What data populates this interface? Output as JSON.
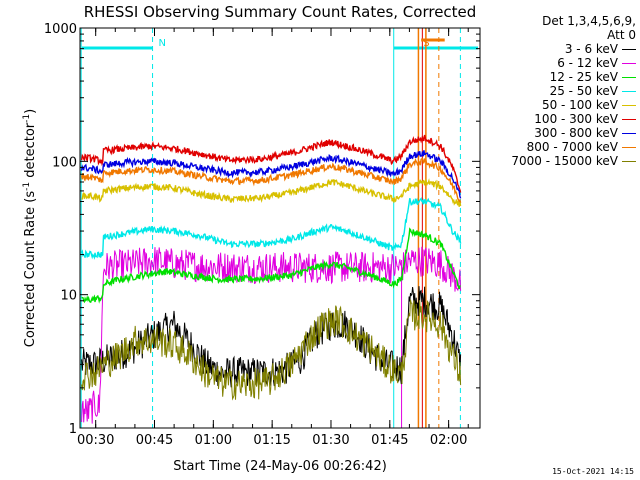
{
  "chart_data": {
    "type": "line",
    "title": "RHESSI Observing Summary Count Rates, Corrected",
    "xlabel": "Start Time (24-May-06 00:26:42)",
    "ylabel_parts": {
      "before": "Corrected Count Rate (s",
      "exp1": "-1",
      "mid": " detector",
      "exp2": "-1",
      "after": ")"
    },
    "yscale": "log",
    "ylim": [
      1,
      1000
    ],
    "y_ticks": [
      "1",
      "10",
      "100",
      "1000"
    ],
    "xlim_minutes": [
      26,
      128
    ],
    "x_ticks": [
      {
        "label": "00:30",
        "minute": 30
      },
      {
        "label": "00:45",
        "minute": 45
      },
      {
        "label": "01:00",
        "minute": 60
      },
      {
        "label": "01:15",
        "minute": 75
      },
      {
        "label": "01:30",
        "minute": 90
      },
      {
        "label": "01:45",
        "minute": 105
      },
      {
        "label": "02:00",
        "minute": 120
      }
    ],
    "legend_header": [
      "Det 1,3,4,5,6,9,",
      "Att 0"
    ],
    "series": [
      {
        "name": "3 - 6 keV",
        "color": "#000000",
        "points": [
          [
            26,
            3
          ],
          [
            30,
            3
          ],
          [
            32,
            3.2
          ],
          [
            36,
            3.5
          ],
          [
            40,
            4
          ],
          [
            45,
            5
          ],
          [
            50,
            6
          ],
          [
            52,
            5
          ],
          [
            55,
            4
          ],
          [
            58,
            3
          ],
          [
            62,
            2.6
          ],
          [
            68,
            2.6
          ],
          [
            72,
            2.6
          ],
          [
            78,
            2.7
          ],
          [
            82,
            3.2
          ],
          [
            86,
            5
          ],
          [
            90,
            6
          ],
          [
            94,
            6
          ],
          [
            97,
            5
          ],
          [
            100,
            3.8
          ],
          [
            104,
            3
          ],
          [
            108,
            2.8
          ],
          [
            110,
            9
          ],
          [
            114,
            9
          ],
          [
            118,
            8
          ],
          [
            121,
            5
          ],
          [
            123,
            3
          ]
        ]
      },
      {
        "name": "6 - 12 keV",
        "color": "#e000e0",
        "points": [
          [
            26,
            1.4
          ],
          [
            28,
            1.3
          ],
          [
            30,
            1.5
          ],
          [
            31,
            1.4
          ],
          [
            32,
            16
          ],
          [
            40,
            17
          ],
          [
            45,
            18
          ],
          [
            50,
            17
          ],
          [
            56,
            16.5
          ],
          [
            66,
            16
          ],
          [
            76,
            16
          ],
          [
            86,
            16
          ],
          [
            96,
            16
          ],
          [
            106,
            16
          ],
          [
            108,
            16
          ],
          [
            110,
            18
          ],
          [
            114,
            18
          ],
          [
            118,
            17
          ],
          [
            121,
            14
          ],
          [
            123,
            12
          ]
        ]
      },
      {
        "name": "12 - 25 keV",
        "color": "#00e000",
        "points": [
          [
            26,
            9
          ],
          [
            29,
            9.2
          ],
          [
            31.8,
            9.5
          ],
          [
            32,
            12
          ],
          [
            36,
            13
          ],
          [
            42,
            14
          ],
          [
            48,
            15
          ],
          [
            54,
            14
          ],
          [
            62,
            13
          ],
          [
            72,
            13.2
          ],
          [
            80,
            14
          ],
          [
            86,
            16
          ],
          [
            90,
            17
          ],
          [
            94,
            16
          ],
          [
            100,
            14
          ],
          [
            106,
            12
          ],
          [
            108,
            13
          ],
          [
            110,
            30
          ],
          [
            114,
            28
          ],
          [
            118,
            24
          ],
          [
            121,
            15
          ],
          [
            123,
            11
          ]
        ]
      },
      {
        "name": "25 - 50 keV",
        "color": "#00e8e8",
        "points": [
          [
            26,
            20
          ],
          [
            29,
            20
          ],
          [
            31.8,
            20
          ],
          [
            32,
            27
          ],
          [
            38,
            29
          ],
          [
            44,
            31
          ],
          [
            50,
            30
          ],
          [
            56,
            28
          ],
          [
            64,
            24
          ],
          [
            72,
            24
          ],
          [
            80,
            26
          ],
          [
            86,
            30
          ],
          [
            90,
            32
          ],
          [
            94,
            30
          ],
          [
            100,
            26
          ],
          [
            106,
            22
          ],
          [
            108,
            24
          ],
          [
            110,
            50
          ],
          [
            114,
            50
          ],
          [
            118,
            45
          ],
          [
            121,
            30
          ],
          [
            123,
            25
          ]
        ]
      },
      {
        "name": "50 - 100 keV",
        "color": "#d8c000",
        "points": [
          [
            26,
            55
          ],
          [
            29,
            55
          ],
          [
            31.8,
            52
          ],
          [
            32,
            60
          ],
          [
            38,
            63
          ],
          [
            44,
            65
          ],
          [
            50,
            63
          ],
          [
            56,
            57
          ],
          [
            64,
            52
          ],
          [
            72,
            53
          ],
          [
            80,
            58
          ],
          [
            86,
            65
          ],
          [
            90,
            70
          ],
          [
            94,
            66
          ],
          [
            100,
            58
          ],
          [
            106,
            52
          ],
          [
            108,
            55
          ],
          [
            110,
            65
          ],
          [
            114,
            70
          ],
          [
            118,
            65
          ],
          [
            121,
            52
          ],
          [
            123,
            47
          ]
        ]
      },
      {
        "name": "100 - 300 keV",
        "color": "#e00000",
        "points": [
          [
            26,
            108
          ],
          [
            29,
            105
          ],
          [
            31.8,
            100
          ],
          [
            32,
            120
          ],
          [
            38,
            125
          ],
          [
            44,
            130
          ],
          [
            50,
            125
          ],
          [
            56,
            115
          ],
          [
            64,
            102
          ],
          [
            72,
            104
          ],
          [
            80,
            115
          ],
          [
            86,
            130
          ],
          [
            90,
            140
          ],
          [
            94,
            130
          ],
          [
            100,
            115
          ],
          [
            106,
            100
          ],
          [
            108,
            110
          ],
          [
            110,
            140
          ],
          [
            114,
            150
          ],
          [
            118,
            130
          ],
          [
            121,
            90
          ],
          [
            123,
            60
          ]
        ]
      },
      {
        "name": "300 - 800 keV",
        "color": "#0000e0",
        "points": [
          [
            26,
            90
          ],
          [
            29,
            88
          ],
          [
            31.8,
            84
          ],
          [
            32,
            94
          ],
          [
            38,
            98
          ],
          [
            44,
            100
          ],
          [
            50,
            97
          ],
          [
            56,
            90
          ],
          [
            64,
            82
          ],
          [
            72,
            83
          ],
          [
            80,
            91
          ],
          [
            86,
            100
          ],
          [
            90,
            106
          ],
          [
            94,
            100
          ],
          [
            100,
            90
          ],
          [
            106,
            80
          ],
          [
            108,
            86
          ],
          [
            110,
            110
          ],
          [
            114,
            115
          ],
          [
            118,
            100
          ],
          [
            121,
            75
          ],
          [
            123,
            55
          ]
        ]
      },
      {
        "name": "800 - 7000 keV",
        "color": "#f07800",
        "points": [
          [
            26,
            78
          ],
          [
            29,
            76
          ],
          [
            31.8,
            72
          ],
          [
            32,
            82
          ],
          [
            38,
            85
          ],
          [
            44,
            87
          ],
          [
            50,
            84
          ],
          [
            56,
            78
          ],
          [
            64,
            71
          ],
          [
            72,
            72
          ],
          [
            80,
            79
          ],
          [
            86,
            87
          ],
          [
            90,
            92
          ],
          [
            94,
            87
          ],
          [
            100,
            78
          ],
          [
            106,
            70
          ],
          [
            108,
            75
          ],
          [
            110,
            95
          ],
          [
            114,
            100
          ],
          [
            118,
            88
          ],
          [
            121,
            66
          ],
          [
            123,
            50
          ]
        ]
      },
      {
        "name": "7000 - 15000 keV",
        "color": "#808000",
        "points": [
          [
            26,
            2.5
          ],
          [
            30,
            2.6
          ],
          [
            32,
            3
          ],
          [
            36,
            3.5
          ],
          [
            40,
            4.5
          ],
          [
            45,
            4.6
          ],
          [
            50,
            4.2
          ],
          [
            54,
            3.5
          ],
          [
            58,
            2.6
          ],
          [
            62,
            2.2
          ],
          [
            68,
            2.1
          ],
          [
            74,
            2.2
          ],
          [
            80,
            3
          ],
          [
            84,
            4.5
          ],
          [
            88,
            6
          ],
          [
            92,
            6.5
          ],
          [
            96,
            5
          ],
          [
            100,
            4
          ],
          [
            104,
            3
          ],
          [
            108,
            2.5
          ],
          [
            110,
            7
          ],
          [
            114,
            7
          ],
          [
            118,
            6
          ],
          [
            121,
            3.5
          ],
          [
            123,
            2.5
          ]
        ]
      }
    ],
    "annotations": [
      {
        "label": "N",
        "minute": 44.5,
        "color": "#00e8e8"
      },
      {
        "label": "S",
        "minute": 112,
        "color": "#f07800"
      }
    ]
  },
  "footer_date": "15-Oct-2021 14:15",
  "colors": {
    "frame": "#000000",
    "cyan": "#00e8e8",
    "magenta": "#e000e0",
    "orange": "#f07800"
  }
}
